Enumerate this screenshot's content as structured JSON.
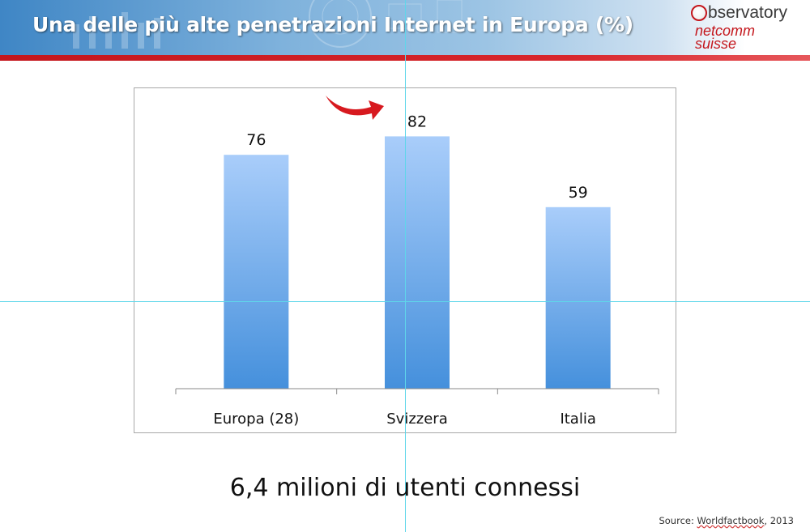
{
  "header": {
    "title": "Una delle più alte penetrazioni Internet in Europa (%)",
    "logo_line1": "bservatory",
    "logo_line2": "netcomm",
    "logo_line3": "suisse"
  },
  "colors": {
    "header_blue": "#3f86c5",
    "brand_red": "#c4161c",
    "bar_top": "#a9cdfa",
    "bar_bottom": "#4590dc",
    "guide_cyan": "#5fd6ea"
  },
  "chart_data": {
    "type": "bar",
    "title": "",
    "categories": [
      "Europa (28)",
      "Svizzera",
      "Italia"
    ],
    "values": [
      76,
      82,
      59
    ],
    "xlabel": "",
    "ylabel": "",
    "ylim": [
      0,
      100
    ],
    "grid": false,
    "highlight_category": "Svizzera"
  },
  "footer": {
    "subtitle": "6,4 milioni di utenti connessi",
    "source_label": "Source: ",
    "source_name": "Worldfactbook",
    "source_year": ", 2013"
  }
}
